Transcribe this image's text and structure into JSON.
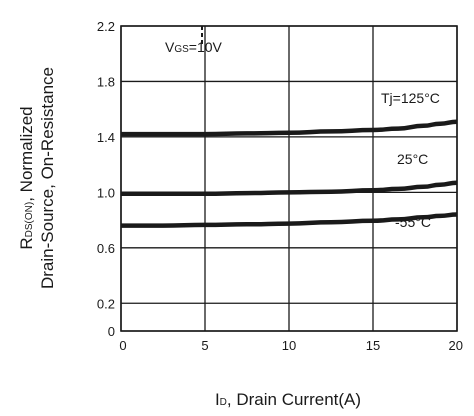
{
  "chart_data": {
    "type": "line",
    "xlabel": {
      "main": "I",
      "sub": "D",
      "rest": ", Drain Current(A)"
    },
    "ylabel": {
      "line1": {
        "main": "R",
        "sub": "DS(ON)",
        "rest": ", Normalized"
      },
      "line2": "Drain-Source, On-Resistance"
    },
    "xlim": [
      0,
      20
    ],
    "ylim": [
      0,
      2.2
    ],
    "x_ticks": [
      0,
      5,
      10,
      15,
      20
    ],
    "y_ticks": [
      0,
      0.2,
      0.6,
      1.0,
      1.4,
      1.8,
      2.2
    ],
    "grid": true,
    "condition": {
      "main": "V",
      "sub": "GS",
      "rest": "=10V"
    },
    "series": [
      {
        "name": "Tj=125°C",
        "x": [
          0,
          2.5,
          5,
          7.5,
          10,
          12.5,
          15,
          16.5,
          18,
          19,
          20
        ],
        "y": [
          1.42,
          1.42,
          1.42,
          1.425,
          1.43,
          1.44,
          1.45,
          1.46,
          1.48,
          1.495,
          1.51
        ]
      },
      {
        "name": "25°C",
        "x": [
          0,
          2.5,
          5,
          7.5,
          10,
          12.5,
          15,
          16.5,
          18,
          19,
          20
        ],
        "y": [
          0.99,
          0.99,
          0.99,
          0.995,
          1.0,
          1.005,
          1.015,
          1.025,
          1.04,
          1.055,
          1.07
        ]
      },
      {
        "name": "-55°C",
        "x": [
          0,
          2.5,
          5,
          7.5,
          10,
          12.5,
          15,
          16.5,
          18,
          19,
          20
        ],
        "y": [
          0.76,
          0.76,
          0.765,
          0.77,
          0.775,
          0.785,
          0.795,
          0.805,
          0.82,
          0.83,
          0.84
        ]
      }
    ]
  }
}
